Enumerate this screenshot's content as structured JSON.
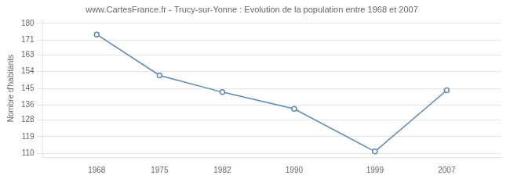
{
  "chart_data": {
    "type": "line",
    "title": "www.CartesFrance.fr - Trucy-sur-Yonne : Evolution de la population entre 1968 et 2007",
    "ylabel": "Nombre d'habitants",
    "x": [
      1968,
      1975,
      1982,
      1990,
      1999,
      2007
    ],
    "values": [
      174,
      152,
      143,
      134,
      111,
      144
    ],
    "color": "#5b87bb",
    "marker": "circle",
    "xlim": [
      1962,
      2013
    ],
    "xticks": [
      1968,
      1975,
      1982,
      1990,
      1999,
      2007
    ],
    "ylim": [
      108,
      182
    ],
    "yticks": [
      110,
      119,
      128,
      136,
      145,
      154,
      163,
      171,
      180
    ],
    "grid": true
  }
}
